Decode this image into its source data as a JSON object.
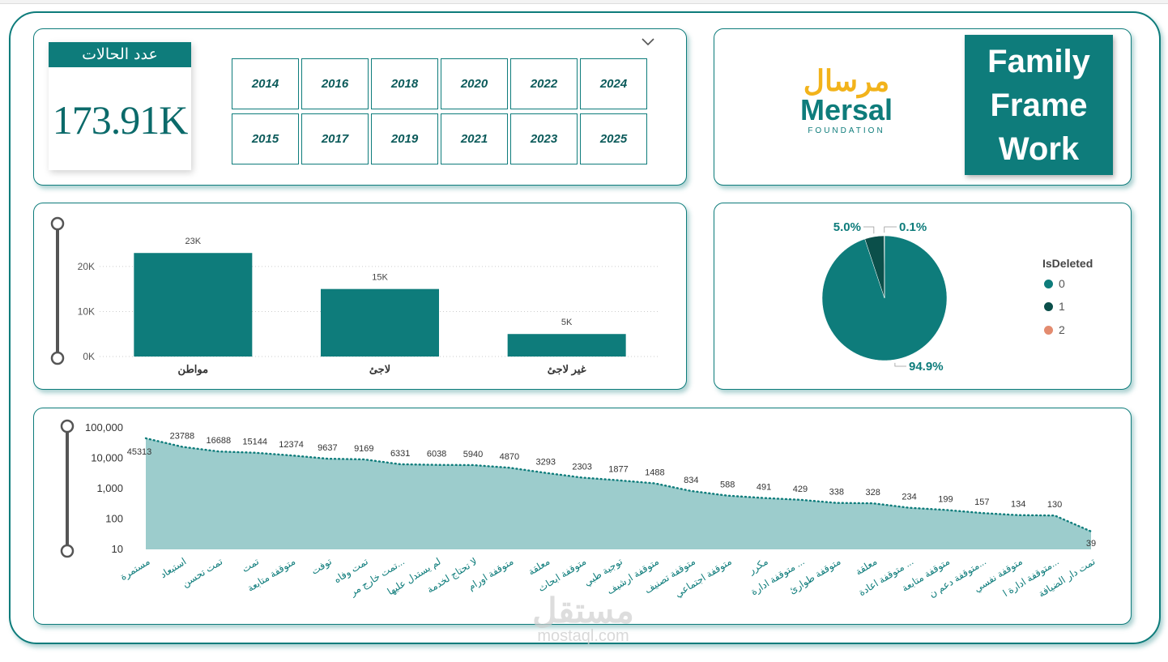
{
  "kpi": {
    "title": "عدد الحالات",
    "value": "173.91K"
  },
  "years": [
    "2014",
    "2016",
    "2018",
    "2020",
    "2022",
    "2024",
    "2015",
    "2017",
    "2019",
    "2021",
    "2023",
    "2025"
  ],
  "brand": {
    "line1": "Family",
    "line2": "Frame",
    "line3": "Work",
    "logo_ar": "مرسال",
    "logo_en": "Mersal",
    "logo_sub": "FOUNDATION"
  },
  "colors": {
    "teal": "#0e7c7b",
    "dark": "#0b4f4a",
    "salmon": "#e38b6f",
    "area": "#9ccccc"
  },
  "bar_chart": {
    "type": "bar",
    "categories": [
      "مواطن",
      "لاجئ",
      "غير لاجئ"
    ],
    "values": [
      23000,
      15000,
      5000
    ],
    "data_labels": [
      "23K",
      "15K",
      "5K"
    ],
    "y_ticks": [
      "0K",
      "10K",
      "20K"
    ],
    "ylim": [
      0,
      27000
    ]
  },
  "pie_chart": {
    "type": "pie",
    "legend_title": "IsDeleted",
    "labels": [
      "0",
      "1",
      "2"
    ],
    "values": [
      94.9,
      5.0,
      0.1
    ],
    "data_labels": [
      "94.9%",
      "5.0%",
      "0.1%"
    ]
  },
  "area_chart": {
    "type": "area",
    "scale": "log",
    "y_ticks": [
      "10",
      "100",
      "1,000",
      "10,000",
      "100,000"
    ],
    "categories": [
      "مستمرة",
      "استبعاد",
      "تمت تحسن",
      "تمت",
      "متوقفة متابعة",
      "توفت",
      "تمت وفاه",
      "تمت خارج مر...",
      "لم يستدل عليها",
      "لا تحتاج لخدمة",
      "متوقفة اورام",
      "معلقة",
      "متوقفة ابحاث",
      "توجية طبي",
      "متوقفة ارشيف",
      "متوقفة تصنيف",
      "متوقفة اجتماعي",
      "مكرر",
      "متوقفة ادارة ...",
      "متوقفة طوارئ",
      "معلقة",
      "متوقفة اعادة ...",
      "متوقفة متابعة",
      "متوقفة دعم ن...",
      "متوقفة نفسي",
      "متوقفة ادارة ا...",
      "تمت دار الضيافة"
    ],
    "point_values": [
      45313,
      23788,
      16688,
      15144,
      12374,
      9637,
      9169,
      6331,
      6038,
      5940,
      4870,
      3293,
      2303,
      1877,
      1488,
      834,
      588,
      491,
      429,
      338,
      328,
      234,
      199,
      157,
      134,
      130,
      39
    ],
    "data_labels": [
      "45313",
      "23788",
      "16688",
      "15144",
      "12374",
      "9637",
      "9169",
      "6331",
      "6038",
      "5940",
      "4870",
      "3293",
      "2303",
      "1877",
      "1488",
      "834",
      "588",
      "491",
      "429",
      "338",
      "328",
      "234",
      "199",
      "157",
      "134",
      "130",
      "39"
    ]
  },
  "watermark": {
    "ar": "مستقل",
    "en": "mostaql.com"
  }
}
